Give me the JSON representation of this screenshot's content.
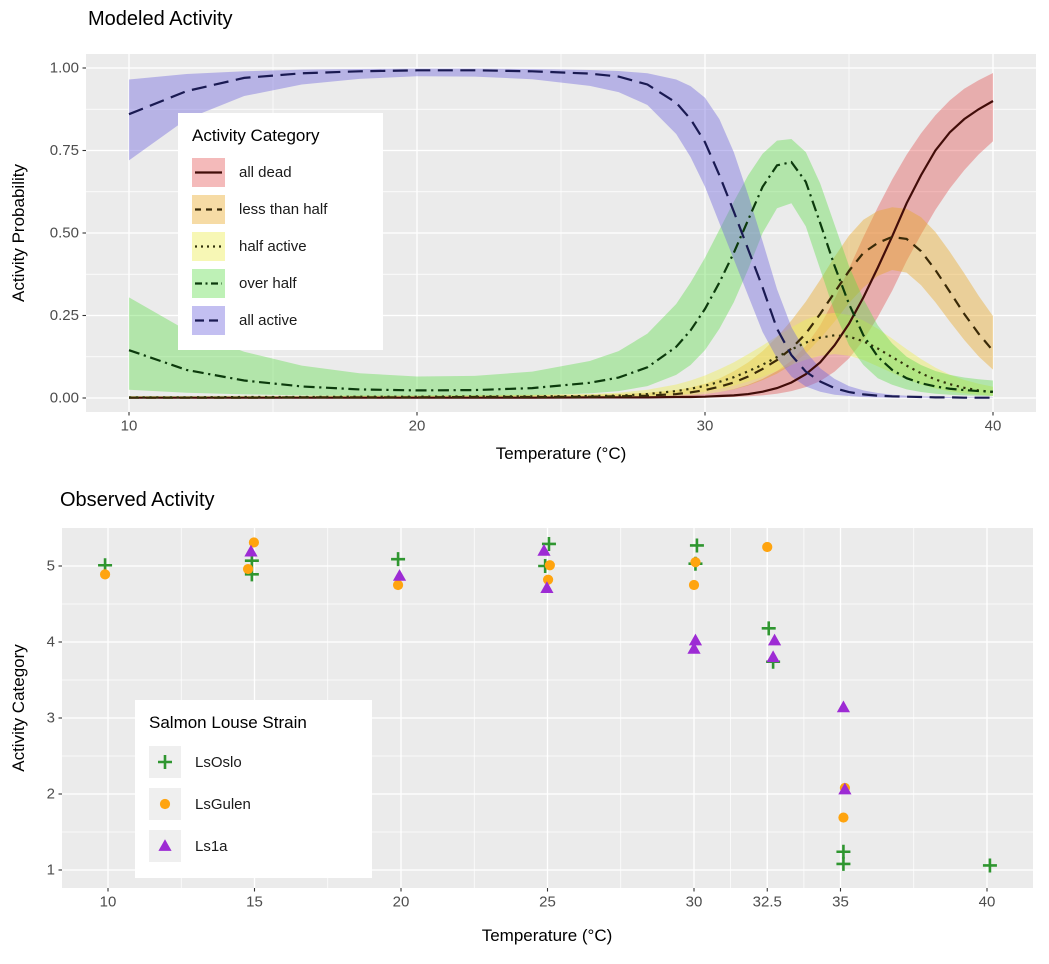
{
  "colors": {
    "panel": "#ebebeb",
    "grid": "#ffffff",
    "tick_mark": "#333333",
    "tick_label": "#4d4d4d",
    "title": "#000000"
  },
  "chart_data": [
    {
      "id": "modeled",
      "type": "line",
      "title": "Modeled Activity",
      "xlabel": "Temperature (°C)",
      "ylabel": "Activity Probability",
      "xlim": [
        8.5,
        41.5
      ],
      "ylim": [
        -0.04,
        1.04
      ],
      "grid": true,
      "x_major": [
        10,
        20,
        30,
        40
      ],
      "x_minor": [
        15,
        25,
        35
      ],
      "x_tick_labels": [
        "10",
        "20",
        "30",
        "40"
      ],
      "y_major": [
        0,
        0.25,
        0.5,
        0.75,
        1.0
      ],
      "y_minor": [
        0.125,
        0.375,
        0.625,
        0.875
      ],
      "y_tick_labels": [
        "0.00",
        "0.25",
        "0.50",
        "0.75",
        "1.00"
      ],
      "legend": {
        "title": "Activity Category",
        "position": "inside-top-left"
      },
      "x": [
        10,
        12,
        14,
        16,
        18,
        20,
        22,
        24,
        26,
        27,
        28,
        29,
        29.5,
        30,
        30.5,
        31,
        31.5,
        32,
        32.5,
        33,
        33.5,
        34,
        34.5,
        35,
        35.5,
        36,
        36.5,
        37,
        37.5,
        38,
        38.5,
        39,
        39.5,
        40
      ],
      "series": [
        {
          "name": "all dead",
          "linetype": "solid",
          "dash": "",
          "legend_dash": "",
          "line_color": "#420d09",
          "fill": "rgba(226,74,74,0.38)",
          "y": [
            0.001,
            0.001,
            0.001,
            0.001,
            0.001,
            0.001,
            0.001,
            0.001,
            0.002,
            0.002,
            0.002,
            0.003,
            0.003,
            0.004,
            0.006,
            0.008,
            0.012,
            0.019,
            0.03,
            0.047,
            0.072,
            0.108,
            0.16,
            0.225,
            0.305,
            0.395,
            0.49,
            0.59,
            0.675,
            0.75,
            0.805,
            0.845,
            0.875,
            0.9
          ],
          "lo": [
            0.0,
            0.0,
            0.0,
            0.0,
            0.0,
            0.0,
            0.0,
            0.0,
            0.001,
            0.001,
            0.001,
            0.001,
            0.001,
            0.002,
            0.002,
            0.003,
            0.005,
            0.008,
            0.013,
            0.021,
            0.033,
            0.051,
            0.08,
            0.12,
            0.175,
            0.245,
            0.325,
            0.415,
            0.495,
            0.57,
            0.635,
            0.69,
            0.738,
            0.778
          ],
          "hi": [
            0.002,
            0.002,
            0.002,
            0.002,
            0.002,
            0.002,
            0.002,
            0.003,
            0.003,
            0.004,
            0.005,
            0.007,
            0.009,
            0.012,
            0.018,
            0.027,
            0.04,
            0.058,
            0.082,
            0.113,
            0.158,
            0.22,
            0.3,
            0.392,
            0.488,
            0.578,
            0.662,
            0.737,
            0.802,
            0.857,
            0.902,
            0.937,
            0.963,
            0.985
          ]
        },
        {
          "name": "less than half",
          "linetype": "dashed",
          "dash": "10,7",
          "legend_dash": "6,5",
          "line_color": "#3a2a08",
          "fill": "rgba(233,164,30,0.40)",
          "y": [
            0.001,
            0.001,
            0.001,
            0.002,
            0.002,
            0.002,
            0.003,
            0.003,
            0.004,
            0.005,
            0.007,
            0.012,
            0.017,
            0.024,
            0.034,
            0.047,
            0.065,
            0.088,
            0.115,
            0.15,
            0.195,
            0.255,
            0.32,
            0.385,
            0.44,
            0.47,
            0.488,
            0.482,
            0.445,
            0.388,
            0.322,
            0.255,
            0.195,
            0.143
          ],
          "lo": [
            0.0,
            0.0,
            0.0,
            0.0,
            0.0,
            0.001,
            0.001,
            0.001,
            0.002,
            0.002,
            0.003,
            0.006,
            0.008,
            0.012,
            0.018,
            0.026,
            0.038,
            0.054,
            0.074,
            0.1,
            0.135,
            0.18,
            0.232,
            0.288,
            0.335,
            0.37,
            0.388,
            0.38,
            0.342,
            0.29,
            0.232,
            0.176,
            0.126,
            0.086
          ],
          "hi": [
            0.004,
            0.004,
            0.005,
            0.005,
            0.006,
            0.006,
            0.007,
            0.008,
            0.01,
            0.012,
            0.016,
            0.024,
            0.032,
            0.043,
            0.059,
            0.081,
            0.108,
            0.142,
            0.185,
            0.235,
            0.292,
            0.358,
            0.428,
            0.492,
            0.54,
            0.567,
            0.578,
            0.573,
            0.548,
            0.503,
            0.443,
            0.378,
            0.31,
            0.248
          ]
        },
        {
          "name": "half active",
          "linetype": "dotted",
          "dash": "2.2,4.6",
          "legend_dash": "2,4",
          "line_color": "#32320c",
          "fill": "rgba(238,238,90,0.45)",
          "y": [
            0.002,
            0.002,
            0.003,
            0.003,
            0.004,
            0.004,
            0.005,
            0.005,
            0.006,
            0.007,
            0.012,
            0.021,
            0.028,
            0.037,
            0.049,
            0.063,
            0.081,
            0.101,
            0.124,
            0.147,
            0.168,
            0.183,
            0.19,
            0.186,
            0.172,
            0.15,
            0.124,
            0.098,
            0.075,
            0.056,
            0.042,
            0.031,
            0.023,
            0.018
          ],
          "lo": [
            0.001,
            0.001,
            0.001,
            0.001,
            0.001,
            0.001,
            0.001,
            0.001,
            0.002,
            0.002,
            0.004,
            0.009,
            0.013,
            0.019,
            0.027,
            0.037,
            0.05,
            0.064,
            0.082,
            0.1,
            0.116,
            0.128,
            0.133,
            0.128,
            0.115,
            0.096,
            0.076,
            0.057,
            0.041,
            0.029,
            0.02,
            0.014,
            0.01,
            0.007
          ],
          "hi": [
            0.006,
            0.006,
            0.007,
            0.007,
            0.008,
            0.008,
            0.009,
            0.01,
            0.012,
            0.016,
            0.025,
            0.041,
            0.053,
            0.068,
            0.087,
            0.108,
            0.133,
            0.159,
            0.187,
            0.214,
            0.238,
            0.253,
            0.258,
            0.252,
            0.235,
            0.21,
            0.18,
            0.148,
            0.118,
            0.092,
            0.071,
            0.055,
            0.043,
            0.034
          ]
        },
        {
          "name": "over half",
          "linetype": "dotdash",
          "dash": "11,4.6,2.2,4.6",
          "legend_dash": "7,3.5,2,3.5",
          "line_color": "#0c3a0c",
          "fill": "rgba(92,221,72,0.40)",
          "y": [
            0.145,
            0.085,
            0.053,
            0.035,
            0.026,
            0.023,
            0.024,
            0.03,
            0.046,
            0.062,
            0.093,
            0.155,
            0.205,
            0.27,
            0.35,
            0.44,
            0.54,
            0.64,
            0.705,
            0.715,
            0.655,
            0.53,
            0.4,
            0.285,
            0.19,
            0.125,
            0.085,
            0.06,
            0.045,
            0.035,
            0.028,
            0.024,
            0.021,
            0.019
          ],
          "lo": [
            0.025,
            0.016,
            0.011,
            0.008,
            0.006,
            0.006,
            0.006,
            0.008,
            0.014,
            0.021,
            0.036,
            0.07,
            0.1,
            0.145,
            0.21,
            0.29,
            0.39,
            0.5,
            0.575,
            0.59,
            0.52,
            0.39,
            0.26,
            0.16,
            0.1,
            0.06,
            0.04,
            0.026,
            0.018,
            0.013,
            0.01,
            0.008,
            0.007,
            0.006
          ],
          "hi": [
            0.305,
            0.205,
            0.14,
            0.098,
            0.075,
            0.065,
            0.067,
            0.08,
            0.112,
            0.142,
            0.195,
            0.285,
            0.35,
            0.425,
            0.51,
            0.595,
            0.675,
            0.74,
            0.78,
            0.785,
            0.745,
            0.65,
            0.525,
            0.4,
            0.3,
            0.22,
            0.165,
            0.125,
            0.1,
            0.082,
            0.07,
            0.062,
            0.057,
            0.053
          ]
        },
        {
          "name": "all active",
          "linetype": "longdash",
          "dash": "15,7.5",
          "legend_dash": "9,5",
          "line_color": "#1a1a52",
          "fill": "rgba(112,102,222,0.42)",
          "y": [
            0.86,
            0.93,
            0.97,
            0.984,
            0.99,
            0.993,
            0.993,
            0.99,
            0.983,
            0.974,
            0.95,
            0.895,
            0.845,
            0.775,
            0.675,
            0.565,
            0.45,
            0.335,
            0.21,
            0.13,
            0.08,
            0.05,
            0.03,
            0.018,
            0.011,
            0.007,
            0.005,
            0.004,
            0.003,
            0.002,
            0.002,
            0.001,
            0.001,
            0.001
          ],
          "lo": [
            0.72,
            0.845,
            0.915,
            0.95,
            0.967,
            0.975,
            0.974,
            0.966,
            0.946,
            0.927,
            0.888,
            0.8,
            0.73,
            0.64,
            0.53,
            0.42,
            0.31,
            0.2,
            0.12,
            0.065,
            0.035,
            0.019,
            0.01,
            0.006,
            0.003,
            0.002,
            0.001,
            0.001,
            0.001,
            0.0,
            0.0,
            0.0,
            0.0,
            0.0
          ],
          "hi": [
            0.965,
            0.982,
            0.99,
            0.995,
            0.997,
            0.998,
            0.998,
            0.997,
            0.994,
            0.991,
            0.984,
            0.965,
            0.945,
            0.91,
            0.845,
            0.745,
            0.615,
            0.475,
            0.33,
            0.215,
            0.14,
            0.09,
            0.058,
            0.036,
            0.023,
            0.015,
            0.01,
            0.007,
            0.005,
            0.004,
            0.003,
            0.002,
            0.002,
            0.001
          ]
        }
      ]
    },
    {
      "id": "observed",
      "type": "scatter",
      "title": "Observed Activity",
      "xlabel": "Temperature (°C)",
      "ylabel": "Activity Category",
      "xlim": [
        8.5,
        41.6
      ],
      "ylim": [
        0.75,
        5.5
      ],
      "grid": true,
      "x_major": [
        10,
        15,
        20,
        25,
        30,
        32.5,
        35,
        40
      ],
      "x_minor": [
        12.5,
        17.5,
        22.5,
        27.5,
        31.25,
        33.75,
        37.5
      ],
      "x_tick_labels": [
        "10",
        "15",
        "20",
        "25",
        "30",
        "32.5",
        "35",
        "40"
      ],
      "y_major": [
        1,
        2,
        3,
        4,
        5
      ],
      "y_minor": [
        1.5,
        2.5,
        3.5,
        4.5
      ],
      "y_tick_labels": [
        "1",
        "2",
        "3",
        "4",
        "5"
      ],
      "legend": {
        "title": "Salmon Louse Strain",
        "position": "inside-bottom-left"
      },
      "series": [
        {
          "name": "LsOslo",
          "shape": "plus",
          "color": "#2f9630",
          "points": [
            [
              9.9,
              5.01
            ],
            [
              14.91,
              5.07
            ],
            [
              14.91,
              4.89
            ],
            [
              19.9,
              5.09
            ],
            [
              25.05,
              5.29
            ],
            [
              24.92,
              5.0
            ],
            [
              30.1,
              5.27
            ],
            [
              30.05,
              5.03
            ],
            [
              32.55,
              4.18
            ],
            [
              32.7,
              3.74
            ],
            [
              35.1,
              1.24
            ],
            [
              35.1,
              1.08
            ],
            [
              40.1,
              1.06
            ]
          ]
        },
        {
          "name": "LsGulen",
          "shape": "circle",
          "color": "#ffa40f",
          "points": [
            [
              9.9,
              4.89
            ],
            [
              14.98,
              5.31
            ],
            [
              14.78,
              4.96
            ],
            [
              19.9,
              4.75
            ],
            [
              25.08,
              5.01
            ],
            [
              25.02,
              4.82
            ],
            [
              30.05,
              5.05
            ],
            [
              30.0,
              4.75
            ],
            [
              32.5,
              5.25
            ],
            [
              35.15,
              2.08
            ],
            [
              35.1,
              1.69
            ]
          ]
        },
        {
          "name": "Ls1a",
          "shape": "triangle",
          "color": "#9d2bd4",
          "points": [
            [
              14.88,
              5.19
            ],
            [
              19.95,
              4.87
            ],
            [
              24.88,
              5.2
            ],
            [
              24.98,
              4.71
            ],
            [
              30.05,
              4.02
            ],
            [
              30.0,
              3.91
            ],
            [
              32.75,
              4.02
            ],
            [
              32.7,
              3.8
            ],
            [
              35.1,
              3.14
            ],
            [
              35.15,
              2.06
            ]
          ]
        }
      ]
    }
  ]
}
